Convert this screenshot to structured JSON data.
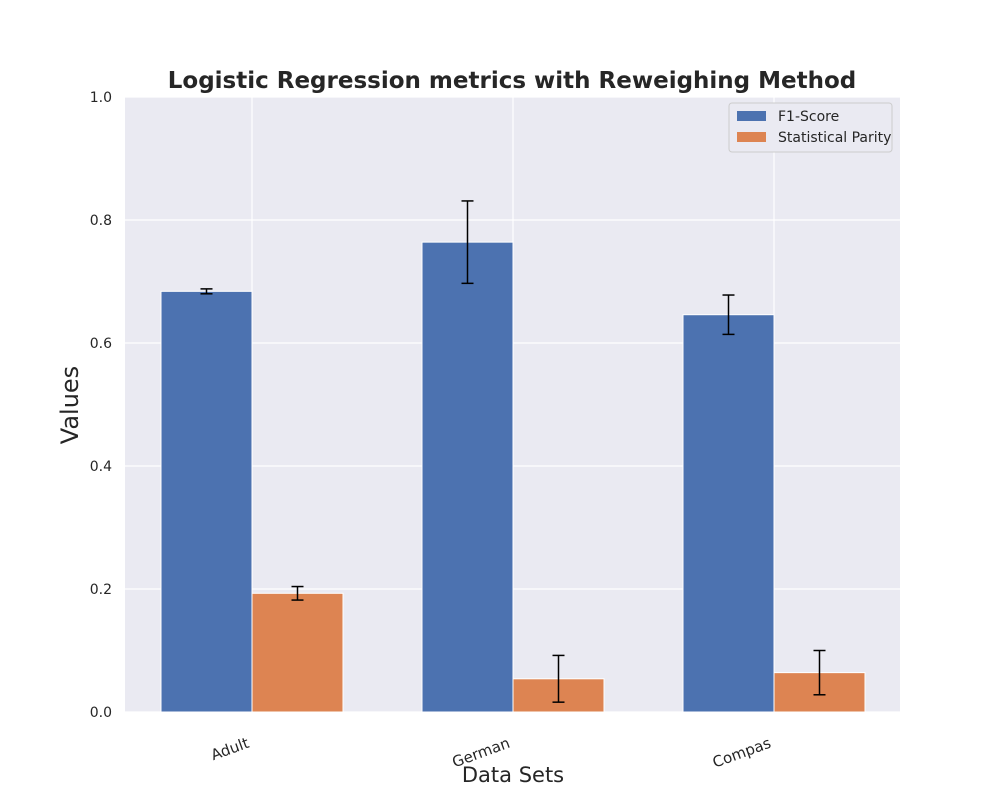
{
  "chart_data": {
    "type": "bar",
    "title": "Logistic Regression metrics with Reweighing Method",
    "xlabel": "Data Sets",
    "ylabel": "Values",
    "categories": [
      "Adult",
      "German",
      "Compas"
    ],
    "series": [
      {
        "name": "F1-Score",
        "values": [
          0.684,
          0.764,
          0.646
        ],
        "errors": [
          0.004,
          0.067,
          0.032
        ],
        "color": "#4c72b0"
      },
      {
        "name": "Statistical Parity",
        "values": [
          0.193,
          0.054,
          0.064
        ],
        "errors": [
          0.011,
          0.038,
          0.036
        ],
        "color": "#dd8452"
      }
    ],
    "ylim": [
      0,
      1.0
    ],
    "yticks": [
      "0.0",
      "0.2",
      "0.4",
      "0.6",
      "0.8",
      "1.0"
    ],
    "grid": true,
    "legend_position": "top-right",
    "background_color": "#eaeaf2"
  }
}
